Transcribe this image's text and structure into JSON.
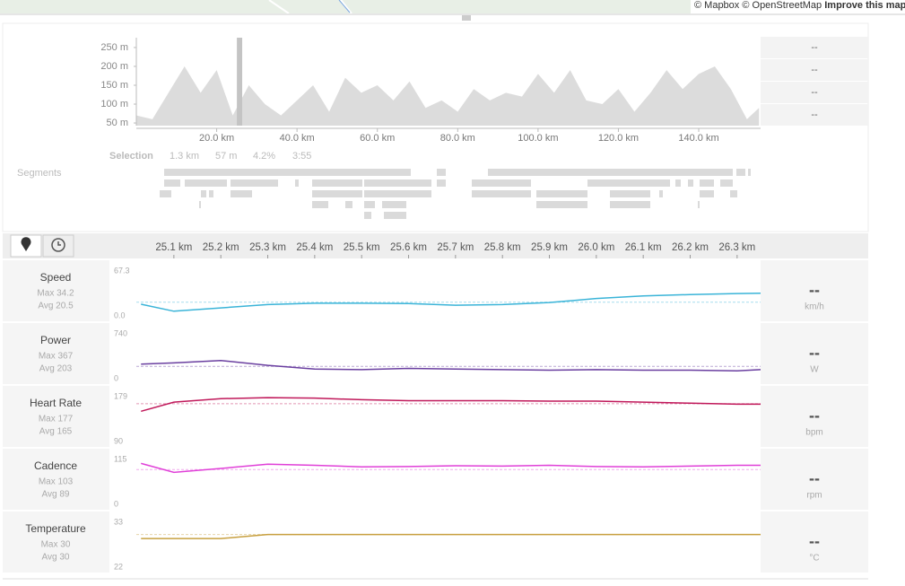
{
  "map": {
    "attribution": "© Mapbox © OpenStreetMap",
    "improve": "Improve this map"
  },
  "elevation": {
    "type": "area",
    "color": "#dcdcdc",
    "xlim": [
      0,
      155.4
    ],
    "ylim": [
      43,
      276
    ],
    "xticks": [
      {
        "value": 20,
        "label": "20.0 km"
      },
      {
        "value": 40,
        "label": "40.0 km"
      },
      {
        "value": 60,
        "label": "60.0 km"
      },
      {
        "value": 80,
        "label": "80.0 km"
      },
      {
        "value": 100,
        "label": "100.0 km"
      },
      {
        "value": 120,
        "label": "120.0 km"
      },
      {
        "value": 140,
        "label": "140.0 km"
      }
    ],
    "yticks": [
      {
        "value": 50,
        "label": "50 m"
      },
      {
        "value": 100,
        "label": "100 m"
      },
      {
        "value": 150,
        "label": "150 m"
      },
      {
        "value": 200,
        "label": "200 m"
      },
      {
        "value": 250,
        "label": "250 m"
      }
    ],
    "x": [
      0,
      4,
      8,
      12,
      16,
      20,
      24,
      28,
      32,
      36,
      40,
      44,
      48,
      52,
      56,
      60,
      64,
      68,
      72,
      76,
      80,
      84,
      88,
      92,
      96,
      100,
      104,
      108,
      112,
      116,
      120,
      124,
      128,
      132,
      136,
      140,
      144,
      148,
      152,
      155
    ],
    "values": [
      70,
      60,
      130,
      200,
      130,
      190,
      70,
      150,
      100,
      70,
      110,
      150,
      80,
      170,
      130,
      150,
      110,
      160,
      90,
      110,
      80,
      140,
      110,
      130,
      120,
      180,
      130,
      190,
      110,
      100,
      140,
      80,
      130,
      190,
      140,
      180,
      200,
      140,
      60,
      90
    ],
    "selection": [
      25.03,
      26.35
    ]
  },
  "stats_boxes": [
    "--",
    "--",
    "--",
    "--"
  ],
  "selection": {
    "label": "Selection",
    "distance": "1.3 km",
    "elevation": "57 m",
    "grade": "4.2%",
    "time": "3:55"
  },
  "segments_label": "Segments",
  "streams": {
    "type": "line",
    "xlim": [
      25.02,
      26.35
    ],
    "xticks": [
      {
        "value": 25.1,
        "label": "25.1 km"
      },
      {
        "value": 25.2,
        "label": "25.2 km"
      },
      {
        "value": 25.3,
        "label": "25.3 km"
      },
      {
        "value": 25.4,
        "label": "25.4 km"
      },
      {
        "value": 25.5,
        "label": "25.5 km"
      },
      {
        "value": 25.6,
        "label": "25.6 km"
      },
      {
        "value": 25.7,
        "label": "25.7 km"
      },
      {
        "value": 25.8,
        "label": "25.8 km"
      },
      {
        "value": 25.9,
        "label": "25.9 km"
      },
      {
        "value": 26.0,
        "label": "26.0 km"
      },
      {
        "value": 26.1,
        "label": "26.1 km"
      },
      {
        "value": 26.2,
        "label": "26.2 km"
      },
      {
        "value": 26.3,
        "label": "26.3 km"
      }
    ],
    "x": [
      25.03,
      25.1,
      25.2,
      25.3,
      25.4,
      25.5,
      25.6,
      25.7,
      25.8,
      25.9,
      26.0,
      26.1,
      26.2,
      26.3,
      26.35
    ],
    "panels": [
      {
        "name": "Speed",
        "max_label": "Max 34.2",
        "avg": 20.5,
        "avg_label": "Avg 20.5",
        "current": "--",
        "unit": "km/h",
        "color": "#3ab4d8",
        "ylim": [
          0,
          67.3
        ],
        "yticks": [
          {
            "value": 0,
            "label": "0.0"
          },
          67.3
        ],
        "values": [
          17.5,
          7,
          12,
          17,
          19,
          19,
          18.5,
          16,
          17,
          20,
          26,
          30,
          32,
          33.5,
          34
        ]
      },
      {
        "name": "Power",
        "max_label": "Max 367",
        "avg": 203,
        "avg_label": "Avg 203",
        "current": "--",
        "unit": "W",
        "color": "#6a3fa0",
        "ylim": [
          0,
          740
        ],
        "yticks": [
          0,
          740
        ],
        "values": [
          240,
          260,
          300,
          220,
          160,
          150,
          170,
          160,
          150,
          140,
          150,
          140,
          140,
          130,
          150
        ]
      },
      {
        "name": "Heart Rate",
        "max_label": "Max 177",
        "avg": 165,
        "avg_label": "Avg 165",
        "current": "--",
        "unit": "bpm",
        "color": "#c0185a",
        "ylim": [
          90,
          179
        ],
        "yticks": [
          90,
          179
        ],
        "values": [
          150,
          168,
          175,
          177,
          176,
          173,
          171,
          171,
          171,
          170,
          170,
          168,
          166,
          164,
          164
        ]
      },
      {
        "name": "Cadence",
        "max_label": "Max 103",
        "avg": 89,
        "avg_label": "Avg 89",
        "current": "--",
        "unit": "rpm",
        "color": "#e040d8",
        "ylim": [
          0,
          115
        ],
        "yticks": [
          0,
          115
        ],
        "values": [
          105,
          82,
          92,
          103,
          100,
          96,
          97,
          99,
          98,
          100,
          97,
          96,
          98,
          100,
          100
        ]
      },
      {
        "name": "Temperature",
        "max_label": "Max 30",
        "avg": 30,
        "avg_label": "Avg 30",
        "current": "--",
        "unit": "°C",
        "color": "#c8a040",
        "ylim": [
          22,
          33
        ],
        "yticks": [
          22,
          33
        ],
        "values": [
          29,
          29,
          29,
          30,
          30,
          30,
          30,
          30,
          30,
          30,
          30,
          30,
          30,
          30,
          30
        ]
      }
    ]
  }
}
